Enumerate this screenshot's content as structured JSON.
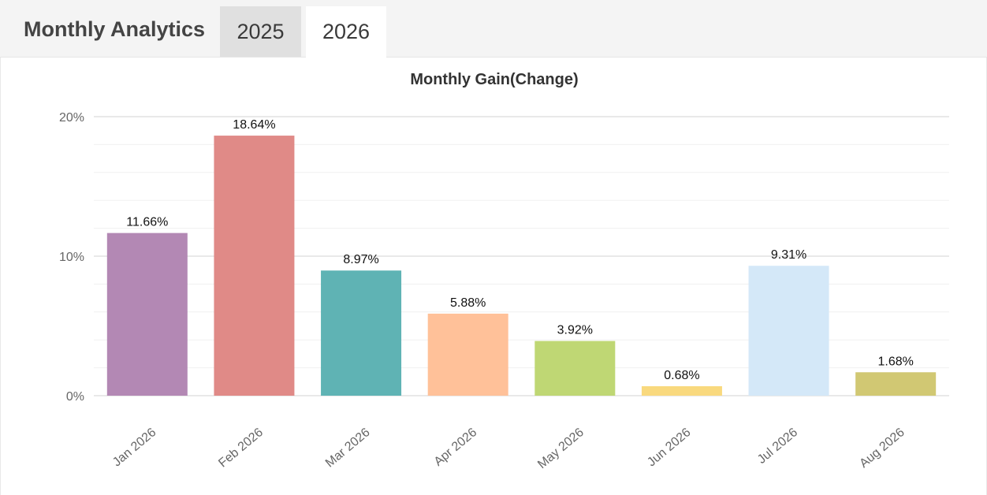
{
  "header": {
    "title": "Monthly Analytics",
    "tabs": [
      {
        "label": "2025",
        "active": false
      },
      {
        "label": "2026",
        "active": true
      }
    ]
  },
  "chart_data": {
    "type": "bar",
    "title": "Monthly Gain(Change)",
    "xlabel": "",
    "ylabel": "",
    "categories": [
      "Jan 2026",
      "Feb 2026",
      "Mar 2026",
      "Apr 2026",
      "May 2026",
      "Jun 2026",
      "Jul 2026",
      "Aug 2026"
    ],
    "values": [
      11.66,
      18.64,
      8.97,
      5.88,
      3.92,
      0.68,
      9.31,
      1.68
    ],
    "value_labels": [
      "11.66%",
      "18.64%",
      "8.97%",
      "5.88%",
      "3.92%",
      "0.68%",
      "9.31%",
      "1.68%"
    ],
    "colors": [
      "#b388b4",
      "#e08a87",
      "#5fb3b4",
      "#ffc199",
      "#bfd774",
      "#f9d97e",
      "#d4e8f8",
      "#d1c873"
    ],
    "ylim": [
      0,
      20
    ],
    "yticks": [
      0,
      10,
      20
    ],
    "ytick_labels": [
      "0%",
      "10%",
      "20%"
    ],
    "grid": true,
    "legend": "none"
  }
}
